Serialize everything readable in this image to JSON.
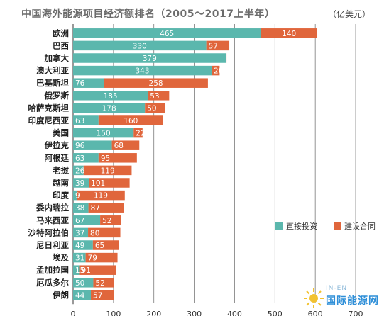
{
  "chart_data": {
    "type": "bar",
    "orientation": "horizontal",
    "stacked": true,
    "title": "中国海外能源项目经济额排名（2005～2017上半年）",
    "unit": "（亿美元）",
    "categories": [
      "欧洲",
      "巴西",
      "加拿大",
      "澳大利亚",
      "巴基斯坦",
      "俄罗斯",
      "哈萨克斯坦",
      "印度尼西亚",
      "美国",
      "伊拉克",
      "阿根廷",
      "老挝",
      "越南",
      "印度",
      "委内瑞拉",
      "马来西亚",
      "沙特阿拉伯",
      "尼日利亚",
      "埃及",
      "孟加拉国",
      "厄瓜多尔",
      "伊朗"
    ],
    "series": [
      {
        "name": "直接投资",
        "color": "#5bb7ad",
        "values": [
          465,
          330,
          379,
          343,
          76,
          185,
          178,
          63,
          150,
          96,
          63,
          26,
          39,
          9,
          38,
          67,
          37,
          49,
          31,
          15,
          50,
          44
        ]
      },
      {
        "name": "建设合同",
        "color": "#e0663c",
        "values": [
          140,
          57,
          1,
          20,
          258,
          53,
          50,
          160,
          22,
          68,
          95,
          119,
          101,
          119,
          87,
          52,
          80,
          65,
          79,
          91,
          52,
          57
        ]
      }
    ],
    "xlim": [
      0,
      700
    ],
    "xticks": [
      0,
      100,
      200,
      300,
      400,
      500,
      600,
      700
    ],
    "grid": "vertical",
    "legend_position": "bottom-right"
  },
  "watermark": {
    "top": "IN-EN",
    "main": "国际能源网"
  }
}
